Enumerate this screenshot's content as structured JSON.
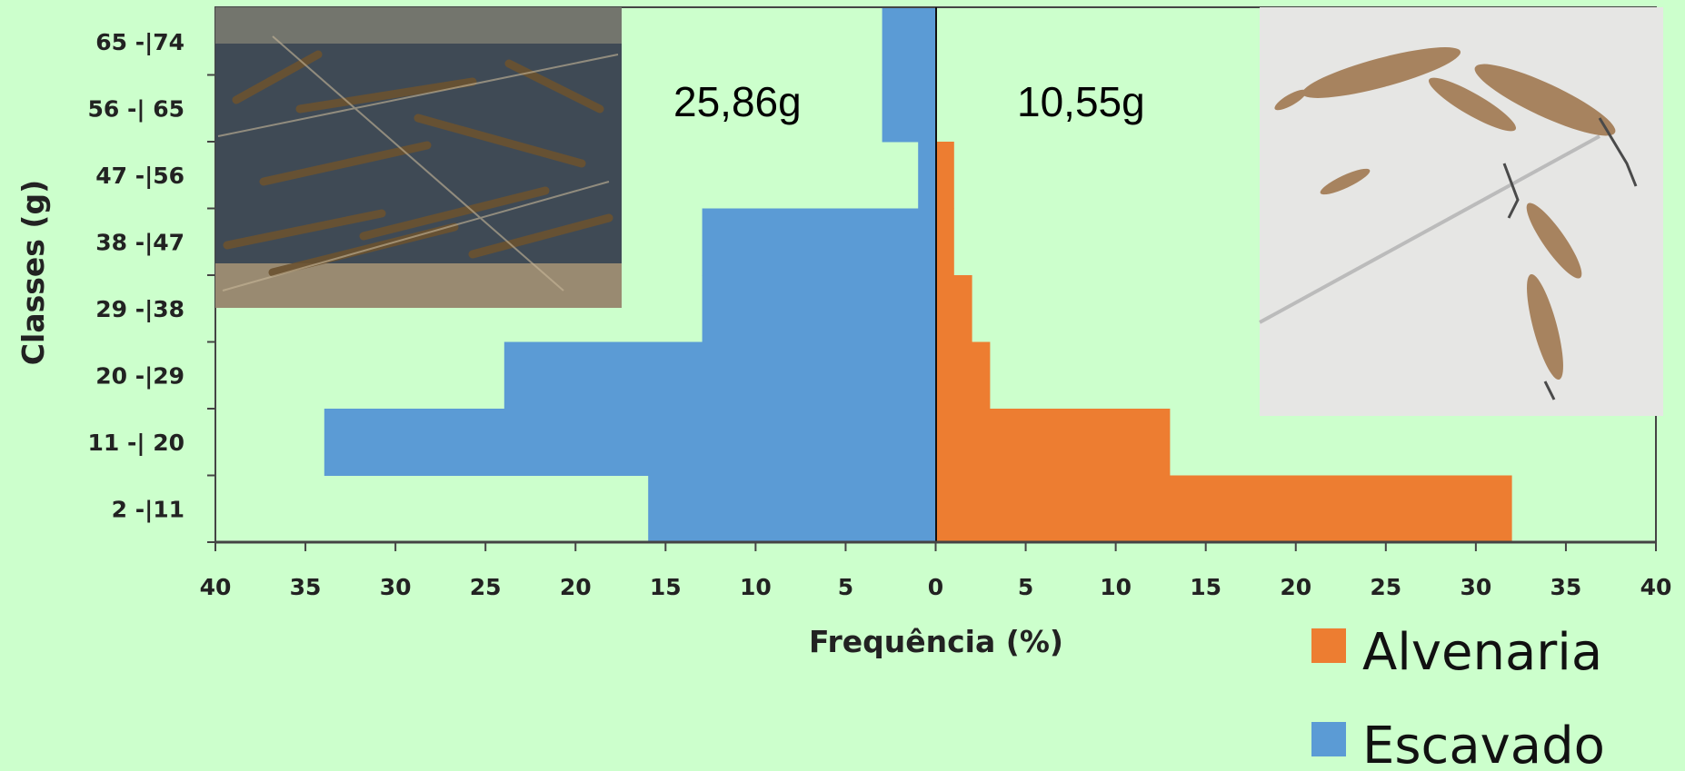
{
  "chart_data": {
    "type": "bar",
    "orientation": "horizontal",
    "layout": "population-pyramid",
    "categories": [
      "2 -|11",
      "11 -| 20",
      "20 -|29",
      "29 -|38",
      "38 -|47",
      "47 -|56",
      "56 -| 65",
      "65 -|74"
    ],
    "series": [
      {
        "name": "Escavado",
        "side": "left",
        "color": "#5b9bd5",
        "values": [
          16,
          34,
          24,
          13,
          13,
          1,
          3,
          3
        ]
      },
      {
        "name": "Alvenaria",
        "side": "right",
        "color": "#ed7d31",
        "values": [
          32,
          13,
          3,
          2,
          1,
          1,
          0,
          0
        ]
      }
    ],
    "xlabel": "Frequência (%)",
    "ylabel": "Classes (g)",
    "xlim": [
      -40,
      40
    ],
    "x_tick_labels": [
      "40",
      "35",
      "30",
      "25",
      "20",
      "15",
      "10",
      "5",
      "0",
      "5",
      "10",
      "15",
      "20",
      "25",
      "30",
      "35",
      "40"
    ],
    "annotations": [
      "25,86g",
      "10,55g"
    ],
    "legend": {
      "position": "bottom-right",
      "entries": [
        "Alvenaria",
        "Escavado"
      ]
    },
    "photos": [
      "shrimp-pond-photo",
      "shrimp-bowl-photo"
    ],
    "grid": false
  }
}
